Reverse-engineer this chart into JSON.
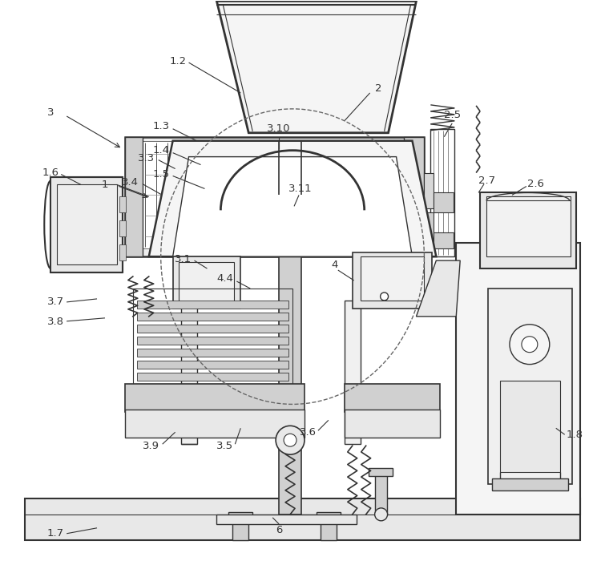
{
  "bg": "#ffffff",
  "lc": "#333333",
  "gray1": "#e8e8e8",
  "gray2": "#d0d0d0",
  "gray3": "#bbbbbb",
  "figw": 7.55,
  "figh": 7.05,
  "dpi": 100
}
